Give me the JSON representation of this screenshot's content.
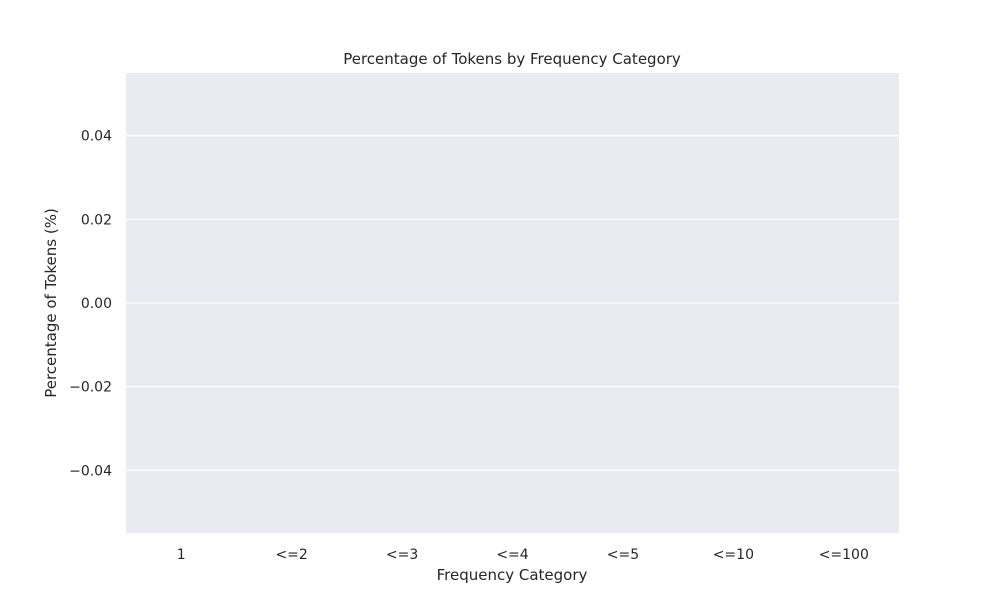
{
  "chart_data": {
    "type": "bar",
    "title": "Percentage of Tokens by Frequency Category",
    "xlabel": "Frequency Category",
    "ylabel": "Percentage of Tokens (%)",
    "categories": [
      "1",
      "<=2",
      "<=3",
      "<=4",
      "<=5",
      "<=10",
      "<=100"
    ],
    "values": [
      0,
      0,
      0,
      0,
      0,
      0,
      0
    ],
    "ylim": [
      -0.055,
      0.055
    ],
    "yticks": [
      0.04,
      0.02,
      0.0,
      -0.02,
      -0.04
    ],
    "ytick_labels": [
      "0.04",
      "0.02",
      "0.00",
      "−0.02",
      "−0.04"
    ],
    "grid": true,
    "legend": "none",
    "colors": {
      "plot_background": "#eaeaf2",
      "grid": "#ffffff",
      "text": "#262626"
    }
  }
}
